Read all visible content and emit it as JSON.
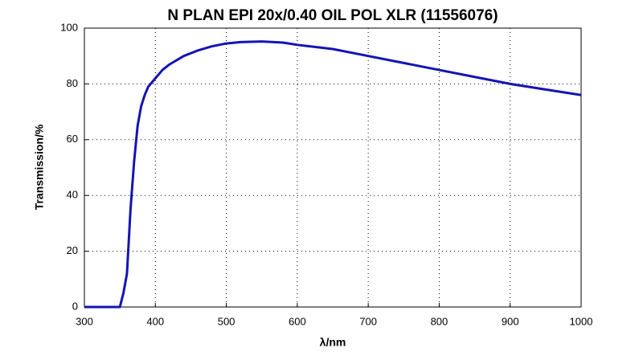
{
  "chart_data": {
    "type": "line",
    "title": "N PLAN EPI 20x/0.40 OIL POL XLR (11556076)",
    "x_label": "λ/nm",
    "y_label": "Transmission/%",
    "x": [
      300,
      350,
      355,
      360,
      365,
      370,
      375,
      380,
      385,
      390,
      400,
      410,
      420,
      440,
      460,
      480,
      500,
      520,
      550,
      580,
      600,
      650,
      700,
      750,
      800,
      850,
      900,
      950,
      1000
    ],
    "series": [
      {
        "name": "Transmission",
        "color": "#1414b4",
        "values": [
          0,
          0,
          5,
          12,
          35,
          52,
          65,
          72,
          76,
          79,
          82,
          85,
          87,
          90,
          92,
          93.5,
          94.5,
          95,
          95.2,
          94.8,
          94,
          92.5,
          90,
          87.5,
          85,
          82.5,
          80,
          78,
          76
        ]
      }
    ],
    "xlim": [
      300,
      1000
    ],
    "ylim": [
      0,
      100
    ],
    "xticks": [
      300,
      400,
      500,
      600,
      700,
      800,
      900,
      1000
    ],
    "yticks": [
      0,
      20,
      40,
      60,
      80,
      100
    ],
    "grid": true
  }
}
